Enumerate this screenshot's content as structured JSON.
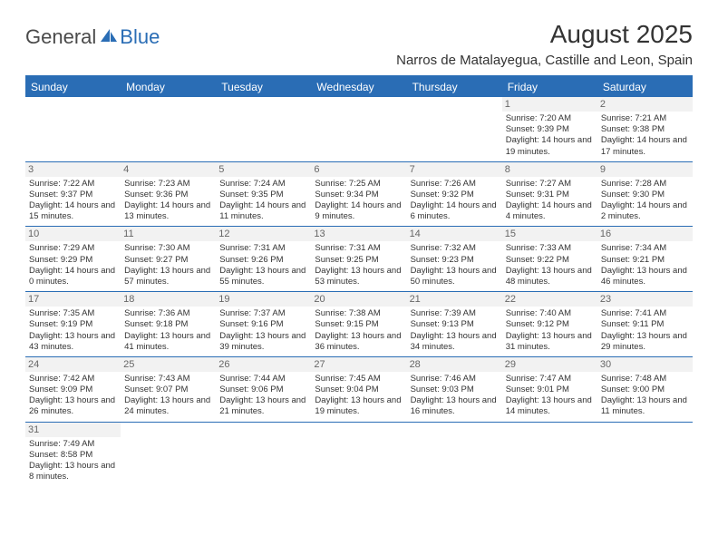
{
  "logo": {
    "part1": "General",
    "part2": "Blue"
  },
  "title": "August 2025",
  "location": "Narros de Matalayegua, Castille and Leon, Spain",
  "colors": {
    "accent": "#2a6db5",
    "text": "#333333",
    "daynum_bg": "#f2f2f2",
    "daynum_color": "#666666",
    "white": "#ffffff"
  },
  "font": {
    "family": "Arial",
    "title_pt": 28,
    "loc_pt": 15,
    "dayhdr_pt": 12,
    "cell_pt": 9.5
  },
  "day_headers": [
    "Sunday",
    "Monday",
    "Tuesday",
    "Wednesday",
    "Thursday",
    "Friday",
    "Saturday"
  ],
  "weeks": [
    [
      null,
      null,
      null,
      null,
      null,
      {
        "n": "1",
        "sr": "7:20 AM",
        "ss": "9:39 PM",
        "dl": "14 hours and 19 minutes."
      },
      {
        "n": "2",
        "sr": "7:21 AM",
        "ss": "9:38 PM",
        "dl": "14 hours and 17 minutes."
      }
    ],
    [
      {
        "n": "3",
        "sr": "7:22 AM",
        "ss": "9:37 PM",
        "dl": "14 hours and 15 minutes."
      },
      {
        "n": "4",
        "sr": "7:23 AM",
        "ss": "9:36 PM",
        "dl": "14 hours and 13 minutes."
      },
      {
        "n": "5",
        "sr": "7:24 AM",
        "ss": "9:35 PM",
        "dl": "14 hours and 11 minutes."
      },
      {
        "n": "6",
        "sr": "7:25 AM",
        "ss": "9:34 PM",
        "dl": "14 hours and 9 minutes."
      },
      {
        "n": "7",
        "sr": "7:26 AM",
        "ss": "9:32 PM",
        "dl": "14 hours and 6 minutes."
      },
      {
        "n": "8",
        "sr": "7:27 AM",
        "ss": "9:31 PM",
        "dl": "14 hours and 4 minutes."
      },
      {
        "n": "9",
        "sr": "7:28 AM",
        "ss": "9:30 PM",
        "dl": "14 hours and 2 minutes."
      }
    ],
    [
      {
        "n": "10",
        "sr": "7:29 AM",
        "ss": "9:29 PM",
        "dl": "14 hours and 0 minutes."
      },
      {
        "n": "11",
        "sr": "7:30 AM",
        "ss": "9:27 PM",
        "dl": "13 hours and 57 minutes."
      },
      {
        "n": "12",
        "sr": "7:31 AM",
        "ss": "9:26 PM",
        "dl": "13 hours and 55 minutes."
      },
      {
        "n": "13",
        "sr": "7:31 AM",
        "ss": "9:25 PM",
        "dl": "13 hours and 53 minutes."
      },
      {
        "n": "14",
        "sr": "7:32 AM",
        "ss": "9:23 PM",
        "dl": "13 hours and 50 minutes."
      },
      {
        "n": "15",
        "sr": "7:33 AM",
        "ss": "9:22 PM",
        "dl": "13 hours and 48 minutes."
      },
      {
        "n": "16",
        "sr": "7:34 AM",
        "ss": "9:21 PM",
        "dl": "13 hours and 46 minutes."
      }
    ],
    [
      {
        "n": "17",
        "sr": "7:35 AM",
        "ss": "9:19 PM",
        "dl": "13 hours and 43 minutes."
      },
      {
        "n": "18",
        "sr": "7:36 AM",
        "ss": "9:18 PM",
        "dl": "13 hours and 41 minutes."
      },
      {
        "n": "19",
        "sr": "7:37 AM",
        "ss": "9:16 PM",
        "dl": "13 hours and 39 minutes."
      },
      {
        "n": "20",
        "sr": "7:38 AM",
        "ss": "9:15 PM",
        "dl": "13 hours and 36 minutes."
      },
      {
        "n": "21",
        "sr": "7:39 AM",
        "ss": "9:13 PM",
        "dl": "13 hours and 34 minutes."
      },
      {
        "n": "22",
        "sr": "7:40 AM",
        "ss": "9:12 PM",
        "dl": "13 hours and 31 minutes."
      },
      {
        "n": "23",
        "sr": "7:41 AM",
        "ss": "9:11 PM",
        "dl": "13 hours and 29 minutes."
      }
    ],
    [
      {
        "n": "24",
        "sr": "7:42 AM",
        "ss": "9:09 PM",
        "dl": "13 hours and 26 minutes."
      },
      {
        "n": "25",
        "sr": "7:43 AM",
        "ss": "9:07 PM",
        "dl": "13 hours and 24 minutes."
      },
      {
        "n": "26",
        "sr": "7:44 AM",
        "ss": "9:06 PM",
        "dl": "13 hours and 21 minutes."
      },
      {
        "n": "27",
        "sr": "7:45 AM",
        "ss": "9:04 PM",
        "dl": "13 hours and 19 minutes."
      },
      {
        "n": "28",
        "sr": "7:46 AM",
        "ss": "9:03 PM",
        "dl": "13 hours and 16 minutes."
      },
      {
        "n": "29",
        "sr": "7:47 AM",
        "ss": "9:01 PM",
        "dl": "13 hours and 14 minutes."
      },
      {
        "n": "30",
        "sr": "7:48 AM",
        "ss": "9:00 PM",
        "dl": "13 hours and 11 minutes."
      }
    ],
    [
      {
        "n": "31",
        "sr": "7:49 AM",
        "ss": "8:58 PM",
        "dl": "13 hours and 8 minutes."
      },
      null,
      null,
      null,
      null,
      null,
      null
    ]
  ],
  "labels": {
    "sunrise": "Sunrise:",
    "sunset": "Sunset:",
    "daylight": "Daylight:"
  }
}
